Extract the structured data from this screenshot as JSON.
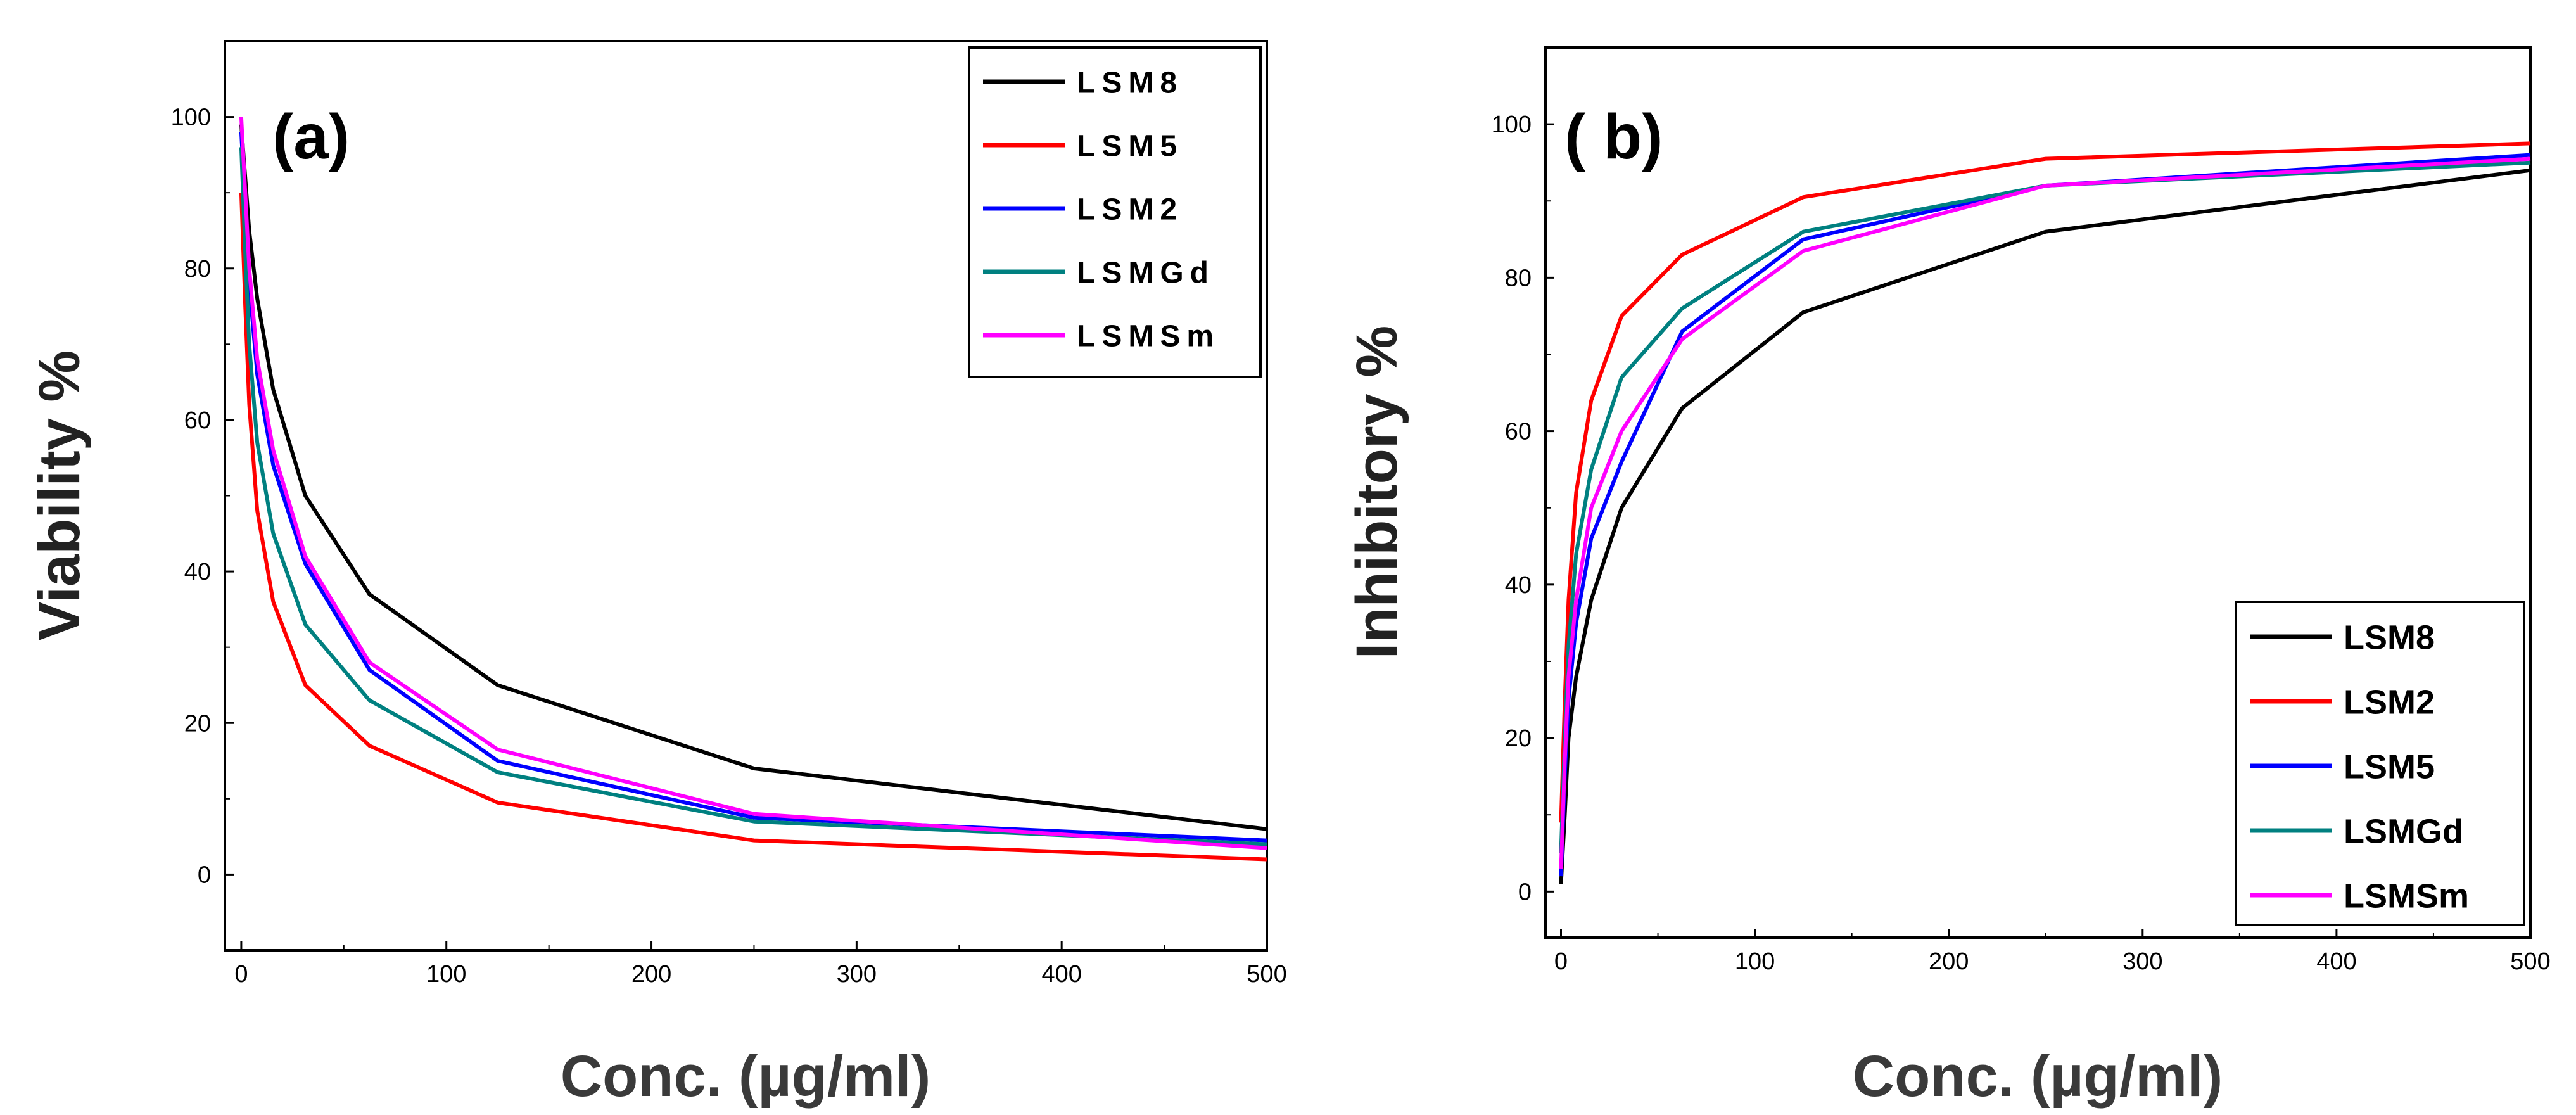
{
  "chart_data": [
    {
      "type": "line",
      "panel_label": "(a)",
      "xlabel": "Conc. (µg/ml)",
      "ylabel": "Viability %",
      "xlim": [
        -8,
        500
      ],
      "ylim": [
        -10,
        110
      ],
      "xticks": [
        0,
        100,
        200,
        300,
        400,
        500
      ],
      "yticks": [
        0,
        20,
        40,
        60,
        80,
        100
      ],
      "xtick_labels": [
        "0",
        "100",
        "200",
        "300",
        "400",
        "500"
      ],
      "ytick_labels": [
        "0",
        "20",
        "40",
        "60",
        "80",
        "100"
      ],
      "grid": false,
      "legend_position": "top-right",
      "x": [
        0,
        1.95,
        3.9,
        7.8,
        15.6,
        31.25,
        62.5,
        125,
        250,
        500
      ],
      "series": [
        {
          "name": "LSM8",
          "color": "#000000",
          "values": [
            99,
            92,
            85,
            76,
            64,
            50,
            37,
            25,
            14,
            6
          ]
        },
        {
          "name": "LSM5",
          "color": "#ff0000",
          "values": [
            90,
            75,
            62,
            48,
            36,
            25,
            17,
            9.5,
            4.5,
            2
          ]
        },
        {
          "name": "LSM2",
          "color": "#0000ff",
          "values": [
            98,
            88,
            78,
            66,
            54,
            41,
            27,
            15,
            7.5,
            4.5
          ]
        },
        {
          "name": "LSMGd",
          "color": "#008080",
          "values": [
            96,
            82,
            70,
            57,
            45,
            33,
            23,
            13.5,
            7,
            4
          ]
        },
        {
          "name": "LSMSm",
          "color": "#ff00ff",
          "values": [
            100,
            90,
            80,
            68,
            56,
            42,
            28,
            16.5,
            8,
            3.5
          ]
        }
      ]
    },
    {
      "type": "line",
      "panel_label": "( b)",
      "xlabel": "Conc. (µg/ml)",
      "ylabel": "Inhibitory %",
      "xlim": [
        -8,
        500
      ],
      "ylim": [
        -6,
        110
      ],
      "xticks": [
        0,
        100,
        200,
        300,
        400,
        500
      ],
      "yticks": [
        0,
        20,
        40,
        60,
        80,
        100
      ],
      "xtick_labels": [
        "0",
        "100",
        "200",
        "300",
        "400",
        "500"
      ],
      "ytick_labels": [
        "0",
        "20",
        "40",
        "60",
        "80",
        "100"
      ],
      "grid": false,
      "legend_position": "bottom-right",
      "x": [
        0,
        1.95,
        3.9,
        7.8,
        15.6,
        31.25,
        62.5,
        125,
        250,
        500
      ],
      "series": [
        {
          "name": "LSM8",
          "color": "#000000",
          "values": [
            1,
            10,
            20,
            28,
            38,
            50,
            63,
            75.5,
            86,
            94
          ]
        },
        {
          "name": "LSM2",
          "color": "#ff0000",
          "values": [
            9,
            25,
            38,
            52,
            64,
            75,
            83,
            90.5,
            95.5,
            97.5
          ]
        },
        {
          "name": "LSM5",
          "color": "#0000ff",
          "values": [
            2,
            15,
            25,
            35,
            46,
            56,
            73,
            85,
            92,
            96
          ]
        },
        {
          "name": "LSMGd",
          "color": "#008080",
          "values": [
            5,
            20,
            32,
            44,
            55,
            67,
            76,
            86,
            92,
            95
          ]
        },
        {
          "name": "LSMSm",
          "color": "#ff00ff",
          "values": [
            3,
            17,
            28,
            38,
            50,
            60,
            72,
            83.5,
            92,
            95.5
          ]
        }
      ]
    }
  ]
}
